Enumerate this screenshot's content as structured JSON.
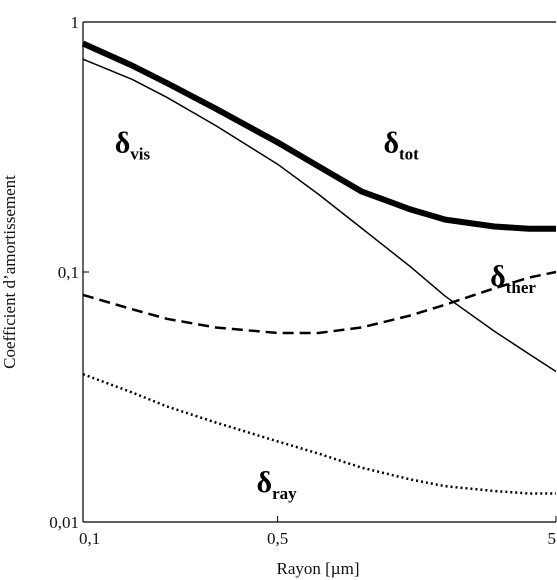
{
  "chart_data": {
    "type": "line",
    "title": "",
    "xlabel": "Rayon [µm]",
    "ylabel": "Coefficient d’amortissement",
    "xscale": "log",
    "yscale": "log",
    "xlim": [
      0.1,
      5
    ],
    "ylim": [
      0.01,
      1
    ],
    "grid": false,
    "legend": "none",
    "x_tick_labels": [
      {
        "value": 0.1,
        "label": "0,1"
      },
      {
        "value": 0.5,
        "label": "0,5"
      },
      {
        "value": 5,
        "label": "5"
      }
    ],
    "y_tick_labels": [
      {
        "value": 0.01,
        "label": "0,01"
      },
      {
        "value": 0.1,
        "label": "0,1"
      },
      {
        "value": 1,
        "label": "1"
      }
    ],
    "series": [
      {
        "key": "tot",
        "style": "thick-solid",
        "color": "#000000",
        "points": [
          [
            0.1,
            0.82
          ],
          [
            0.15,
            0.67
          ],
          [
            0.2,
            0.57
          ],
          [
            0.3,
            0.45
          ],
          [
            0.5,
            0.33
          ],
          [
            0.7,
            0.265
          ],
          [
            1.0,
            0.21
          ],
          [
            1.5,
            0.178
          ],
          [
            2.0,
            0.162
          ],
          [
            3.0,
            0.152
          ],
          [
            4.0,
            0.149
          ],
          [
            5.0,
            0.149
          ]
        ]
      },
      {
        "key": "vis",
        "style": "thin-solid",
        "color": "#000000",
        "points": [
          [
            0.1,
            0.71
          ],
          [
            0.15,
            0.59
          ],
          [
            0.2,
            0.5
          ],
          [
            0.3,
            0.385
          ],
          [
            0.5,
            0.27
          ],
          [
            0.7,
            0.205
          ],
          [
            1.0,
            0.15
          ],
          [
            1.5,
            0.105
          ],
          [
            2.0,
            0.08
          ],
          [
            3.0,
            0.058
          ],
          [
            4.0,
            0.047
          ],
          [
            5.0,
            0.04
          ]
        ]
      },
      {
        "key": "ther",
        "style": "dashed",
        "color": "#000000",
        "points": [
          [
            0.1,
            0.081
          ],
          [
            0.15,
            0.071
          ],
          [
            0.2,
            0.065
          ],
          [
            0.3,
            0.06
          ],
          [
            0.5,
            0.057
          ],
          [
            0.7,
            0.057
          ],
          [
            1.0,
            0.06
          ],
          [
            1.5,
            0.067
          ],
          [
            2.0,
            0.074
          ],
          [
            3.0,
            0.086
          ],
          [
            4.0,
            0.095
          ],
          [
            5.0,
            0.1
          ]
        ]
      },
      {
        "key": "ray",
        "style": "dotted",
        "color": "#000000",
        "points": [
          [
            0.1,
            0.039
          ],
          [
            0.15,
            0.033
          ],
          [
            0.2,
            0.029
          ],
          [
            0.3,
            0.025
          ],
          [
            0.5,
            0.021
          ],
          [
            0.7,
            0.0188
          ],
          [
            1.0,
            0.0165
          ],
          [
            1.5,
            0.0148
          ],
          [
            2.0,
            0.0139
          ],
          [
            3.0,
            0.0133
          ],
          [
            4.0,
            0.013
          ],
          [
            5.0,
            0.013
          ]
        ]
      }
    ],
    "annotations": [
      {
        "key": "vis",
        "main": "δ",
        "sub": "vis",
        "x": 0.13,
        "y": 0.3
      },
      {
        "key": "tot",
        "main": "δ",
        "sub": "tot",
        "x": 1.2,
        "y": 0.3
      },
      {
        "key": "ther",
        "main": "δ",
        "sub": "ther",
        "x": 2.9,
        "y": 0.088
      },
      {
        "key": "ray",
        "main": "δ",
        "sub": "ray",
        "x": 0.42,
        "y": 0.0132
      }
    ]
  }
}
